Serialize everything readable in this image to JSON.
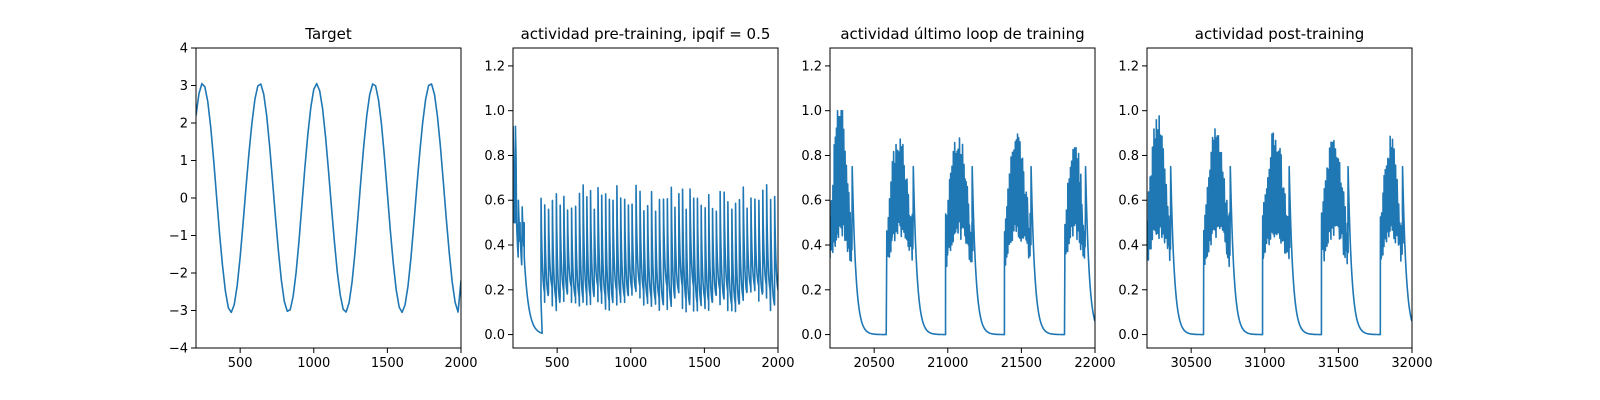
{
  "colors": {
    "line": "#1f77b4",
    "axes": "#000000",
    "background": "#ffffff"
  },
  "chart_data": [
    {
      "type": "line",
      "title": "Target",
      "xlim": [
        200,
        2000
      ],
      "ylim": [
        -4,
        4
      ],
      "xticks": [
        500,
        1000,
        1500,
        2000
      ],
      "yticks": [
        -4,
        -3,
        -2,
        -1,
        0,
        1,
        2,
        3,
        4
      ],
      "xtick_labels": [
        "500",
        "1000",
        "1500",
        "2000"
      ],
      "ytick_labels": [
        "−4",
        "−3",
        "−2",
        "−1",
        "0",
        "1",
        "2",
        "3",
        "4"
      ],
      "grid": false,
      "series": [
        {
          "x": [
            200,
            220,
            240,
            260,
            280,
            300,
            320,
            340,
            360,
            380,
            400,
            420,
            440,
            460,
            480,
            500,
            520,
            540,
            560,
            580,
            600,
            620,
            640,
            660,
            680,
            700,
            720,
            740,
            760,
            780,
            800,
            820,
            840,
            860,
            880,
            900,
            920,
            940,
            960,
            980,
            1000,
            1020,
            1040,
            1060,
            1080,
            1100,
            1120,
            1140,
            1160,
            1180,
            1200,
            1220,
            1240,
            1260,
            1280,
            1300,
            1320,
            1340,
            1360,
            1380,
            1400,
            1420,
            1440,
            1460,
            1480,
            1500,
            1520,
            1540,
            1560,
            1580,
            1600,
            1620,
            1640,
            1660,
            1680,
            1700,
            1720,
            1740,
            1760,
            1780,
            1800,
            1820,
            1840,
            1860,
            1880,
            1900,
            1920,
            1940,
            1960,
            1980,
            2000
          ],
          "y": [
            2.2,
            2.78,
            3.05,
            2.97,
            2.57,
            1.89,
            1.01,
            0.03,
            -0.95,
            -1.8,
            -2.49,
            -2.93,
            -3.05,
            -2.84,
            -2.33,
            -1.57,
            -0.66,
            0.3,
            1.21,
            2.0,
            2.63,
            2.99,
            3.04,
            2.77,
            2.2,
            1.39,
            0.45,
            -0.52,
            -1.42,
            -2.2,
            -2.76,
            -3.02,
            -2.98,
            -2.62,
            -1.98,
            -1.13,
            -0.15,
            0.83,
            1.71,
            2.42,
            2.9,
            3.05,
            2.86,
            2.38,
            1.63,
            0.73,
            -0.23,
            -1.16,
            -1.98,
            -2.59,
            -2.97,
            -3.04,
            -2.79,
            -2.24,
            -1.45,
            -0.5,
            0.49,
            1.41,
            2.2,
            2.76,
            3.04,
            2.99,
            2.61,
            1.96,
            1.1,
            0.12,
            -0.87,
            -1.74,
            -2.45,
            -2.91,
            -3.05,
            -2.85,
            -2.35,
            -1.6,
            -0.68,
            0.3,
            1.22,
            2.02,
            2.64,
            3.0,
            3.04,
            2.76,
            2.18,
            1.38,
            0.43,
            -0.55,
            -1.45,
            -2.23,
            -2.78,
            -3.04,
            -2.2
          ]
        }
      ]
    },
    {
      "type": "line",
      "title": "actividad pre-training, ipqif = 0.5",
      "xlim": [
        200,
        2000
      ],
      "ylim": [
        -0.06,
        1.28
      ],
      "xticks": [
        500,
        1000,
        1500,
        2000
      ],
      "yticks": [
        0,
        0.2,
        0.4,
        0.6,
        0.8,
        1.0,
        1.2
      ],
      "xtick_labels": [
        "500",
        "1000",
        "1500",
        "2000"
      ],
      "ytick_labels": [
        "0.0",
        "0.2",
        "0.4",
        "0.6",
        "0.8",
        "1.0",
        "1.2"
      ],
      "grid": false,
      "pattern": {
        "kind": "spike-train",
        "segments": [
          {
            "from": 200,
            "to": 400,
            "spikes": [
              [
                200,
                0.93
              ],
              [
                208,
                0.72
              ],
              [
                216,
                0.93
              ],
              [
                224,
                0.5
              ],
              [
                236,
                0.6
              ],
              [
                248,
                0.45
              ],
              [
                262,
                0.57
              ],
              [
                276,
                0.35
              ]
            ],
            "rise": 0.5,
            "tau": 30,
            "floor": 0.0
          },
          {
            "from": 390,
            "to": 2000,
            "period": 26,
            "low": [
              0.1,
              0.2
            ],
            "high": [
              0.55,
              0.67
            ],
            "decay_to": 0.05
          }
        ]
      },
      "series": [
        {
          "x": [],
          "y": []
        }
      ]
    },
    {
      "type": "line",
      "title": "actividad último loop de training",
      "xlim": [
        20200,
        22000
      ],
      "ylim": [
        -0.06,
        1.28
      ],
      "xticks": [
        20500,
        21000,
        21500,
        22000
      ],
      "yticks": [
        0,
        0.2,
        0.4,
        0.6,
        0.8,
        1.0,
        1.2
      ],
      "xtick_labels": [
        "20500",
        "21000",
        "21500",
        "22000"
      ],
      "ytick_labels": [
        "0.0",
        "0.2",
        "0.4",
        "0.6",
        "0.8",
        "1.0",
        "1.2"
      ],
      "grid": false,
      "pattern": {
        "kind": "bursts",
        "bursts": [
          {
            "start": 20200,
            "end": 20350,
            "peak": 1.0
          },
          {
            "start": 20585,
            "end": 20765,
            "peak": 0.85
          },
          {
            "start": 20985,
            "end": 21165,
            "peak": 0.87
          },
          {
            "start": 21385,
            "end": 21565,
            "peak": 0.87
          },
          {
            "start": 21795,
            "end": 21935,
            "peak": 0.86
          }
        ],
        "decay_tau": 25
      },
      "series": [
        {
          "x": [],
          "y": []
        }
      ]
    },
    {
      "type": "line",
      "title": "actividad post-training",
      "xlim": [
        30200,
        32000
      ],
      "ylim": [
        -0.06,
        1.28
      ],
      "xticks": [
        30500,
        31000,
        31500,
        32000
      ],
      "yticks": [
        0,
        0.2,
        0.4,
        0.6,
        0.8,
        1.0,
        1.2
      ],
      "xtick_labels": [
        "30500",
        "31000",
        "31500",
        "32000"
      ],
      "ytick_labels": [
        "0.0",
        "0.2",
        "0.4",
        "0.6",
        "0.8",
        "1.0",
        "1.2"
      ],
      "grid": false,
      "pattern": {
        "kind": "bursts",
        "bursts": [
          {
            "start": 30200,
            "end": 30360,
            "peak": 0.94
          },
          {
            "start": 30585,
            "end": 30765,
            "peak": 0.88
          },
          {
            "start": 30985,
            "end": 31165,
            "peak": 0.88
          },
          {
            "start": 31385,
            "end": 31565,
            "peak": 0.86
          },
          {
            "start": 31785,
            "end": 31935,
            "peak": 0.84
          }
        ],
        "decay_tau": 25
      },
      "series": [
        {
          "x": [],
          "y": []
        }
      ]
    }
  ]
}
